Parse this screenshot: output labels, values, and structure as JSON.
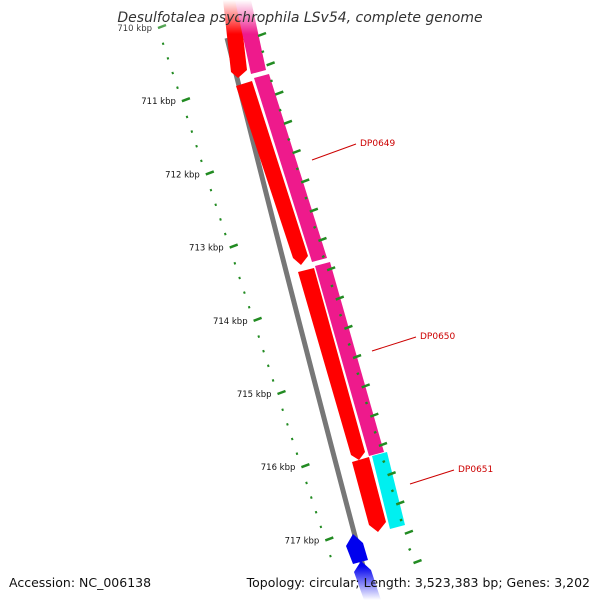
{
  "title": "Desulfotalea psychrophila LSv54, complete genome",
  "accession": "Accession: NC_006138",
  "summary": "Topology: circular; Length: 3,523,383 bp; Genes: 3,202",
  "scale": {
    "unit": "kbp",
    "ticks": [
      {
        "pos": 710,
        "label": "710 kbp"
      },
      {
        "pos": 711,
        "label": "711 kbp"
      },
      {
        "pos": 712,
        "label": "712 kbp"
      },
      {
        "pos": 713,
        "label": "713 kbp"
      },
      {
        "pos": 714,
        "label": "714 kbp"
      },
      {
        "pos": 715,
        "label": "715 kbp"
      },
      {
        "pos": 716,
        "label": "716 kbp"
      },
      {
        "pos": 717,
        "label": "717 kbp"
      }
    ]
  },
  "genes": [
    {
      "label": "DP0649",
      "label_color": "#cc0000"
    },
    {
      "label": "DP0650",
      "label_color": "#cc0000"
    },
    {
      "label": "DP0651",
      "label_color": "#cc0000"
    }
  ],
  "colors": {
    "backbone": "#777777",
    "cds_forward": "#ff0000",
    "feature_pink": "#ee1a8c",
    "feature_cyan": "#00f0f0",
    "cds_blue": "#0000ee",
    "tick_green": "#228b22",
    "label_red": "#cc0000"
  }
}
